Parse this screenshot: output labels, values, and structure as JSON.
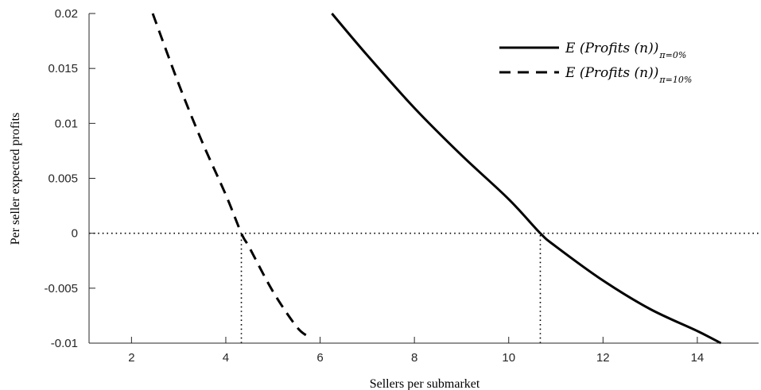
{
  "chart_data": {
    "type": "line",
    "title": "",
    "xlabel": "Sellers per submarket",
    "ylabel": "Per seller expected profits",
    "xlim": [
      1.1,
      15.3
    ],
    "ylim": [
      -0.01,
      0.02
    ],
    "xticks": [
      2,
      4,
      6,
      8,
      10,
      12,
      14
    ],
    "xtick_labels": [
      "2",
      "4",
      "6",
      "8",
      "10",
      "12",
      "14"
    ],
    "yticks": [
      -0.01,
      -0.005,
      0,
      0.005,
      0.01,
      0.015,
      0.02
    ],
    "ytick_labels": [
      "-0.01",
      "-0.005",
      "0",
      "0.005",
      "0.01",
      "0.015",
      "0.02"
    ],
    "grid": false,
    "legend_position": "top-right",
    "series": [
      {
        "name_main": "E (Profits (n))",
        "name_sub": "π=0%",
        "style": "solid",
        "color": "#000000",
        "x": [
          6.25,
          7,
          8,
          9,
          10,
          10.67,
          11,
          12,
          13,
          14,
          14.5
        ],
        "y": [
          0.02,
          0.0162,
          0.0114,
          0.0071,
          0.0031,
          0.0,
          -0.0012,
          -0.0043,
          -0.0069,
          -0.0089,
          -0.01
        ]
      },
      {
        "name_main": "E (Profits (n))",
        "name_sub": "π=10%",
        "style": "dashed",
        "color": "#000000",
        "x": [
          2.45,
          3,
          3.5,
          4,
          4.33,
          4.5,
          5,
          5.5,
          5.75
        ],
        "y": [
          0.02,
          0.0136,
          0.0083,
          0.0035,
          0.0,
          -0.0013,
          -0.0053,
          -0.0085,
          -0.0094
        ]
      }
    ],
    "reference_lines": [
      {
        "orientation": "horizontal",
        "y": 0,
        "style": "dotted"
      },
      {
        "orientation": "vertical",
        "x": 4.33,
        "y_from": -0.01,
        "y_to": 0,
        "style": "dotted"
      },
      {
        "orientation": "vertical",
        "x": 10.67,
        "y_from": -0.01,
        "y_to": 0,
        "style": "dotted"
      }
    ]
  }
}
